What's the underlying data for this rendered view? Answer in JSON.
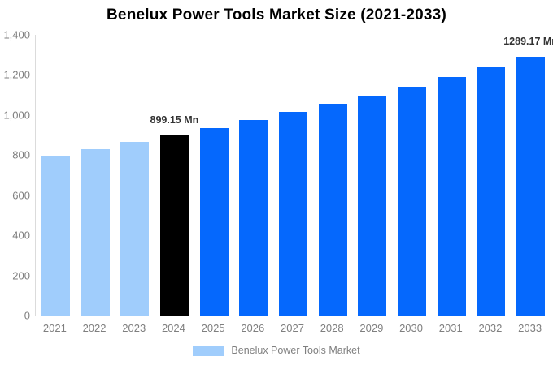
{
  "title": "Benelux Power Tools Market Size (2021-2033)",
  "legend": {
    "label": "Benelux Power Tools Market",
    "swatch_color": "#A0CDFC"
  },
  "colors": {
    "historical_bar": "#A0CDFC",
    "base_year_bar": "#000000",
    "forecast_bar": "#0568FD",
    "axis_line": "#DBDBDB",
    "tick_text": "#7F7F7F",
    "data_label_text": "#333333",
    "title_text": "#000000",
    "background": "#FFFFFF"
  },
  "chart_data": {
    "type": "bar",
    "title": "Benelux Power Tools Market Size (2021-2033)",
    "categories": [
      "2021",
      "2022",
      "2023",
      "2024",
      "2025",
      "2026",
      "2027",
      "2028",
      "2029",
      "2030",
      "2031",
      "2032",
      "2033"
    ],
    "values": [
      797,
      830,
      864,
      899.15,
      936,
      974,
      1014,
      1055,
      1098,
      1143,
      1190,
      1238,
      1289.17
    ],
    "bar_colors": [
      "#A0CDFC",
      "#A0CDFC",
      "#A0CDFC",
      "#000000",
      "#0568FD",
      "#0568FD",
      "#0568FD",
      "#0568FD",
      "#0568FD",
      "#0568FD",
      "#0568FD",
      "#0568FD",
      "#0568FD"
    ],
    "data_labels": [
      "",
      "",
      "",
      "899.15 Mn",
      "",
      "",
      "",
      "",
      "",
      "",
      "",
      "",
      "1289.17 Mn"
    ],
    "unit": "Mn",
    "xlabel": "",
    "ylabel": "",
    "ylim": [
      0,
      1400
    ],
    "yticks": [
      {
        "value": 0,
        "label": "0"
      },
      {
        "value": 200,
        "label": "200"
      },
      {
        "value": 400,
        "label": "400"
      },
      {
        "value": 600,
        "label": "600"
      },
      {
        "value": 800,
        "label": "800"
      },
      {
        "value": 1000,
        "label": "1,000"
      },
      {
        "value": 1200,
        "label": "1,200"
      },
      {
        "value": 1400,
        "label": "1,400"
      }
    ],
    "grid": false,
    "legend_position": "bottom",
    "legend_entries": [
      "Benelux Power Tools Market"
    ]
  }
}
